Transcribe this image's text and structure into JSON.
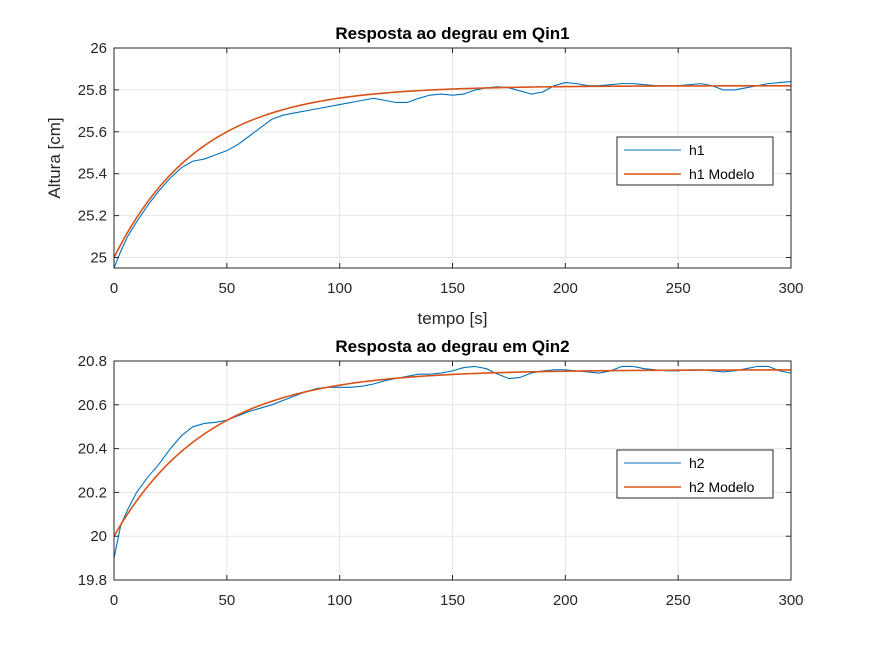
{
  "chart_data": [
    {
      "type": "line",
      "title": "Resposta ao degrau em Qin1",
      "xlabel": "tempo [s]",
      "ylabel": "Altura [cm]",
      "xlim": [
        0,
        300
      ],
      "ylim": [
        24.95,
        26
      ],
      "xticks": [
        "0",
        "50",
        "100",
        "150",
        "200",
        "250",
        "300"
      ],
      "yticks": [
        "25",
        "25.2",
        "25.4",
        "25.6",
        "25.8",
        "26"
      ],
      "grid": true,
      "legend_position": "right",
      "series": [
        {
          "name": "h1",
          "color": "#0072BD",
          "x": [
            0,
            3,
            6,
            10,
            15,
            20,
            25,
            30,
            35,
            40,
            45,
            50,
            55,
            60,
            65,
            70,
            75,
            80,
            90,
            100,
            110,
            115,
            120,
            125,
            130,
            135,
            140,
            145,
            150,
            155,
            160,
            165,
            170,
            175,
            180,
            185,
            190,
            195,
            200,
            205,
            210,
            215,
            220,
            225,
            230,
            235,
            240,
            245,
            250,
            255,
            260,
            265,
            270,
            275,
            280,
            285,
            290,
            295,
            300
          ],
          "y": [
            24.95,
            25.03,
            25.1,
            25.17,
            25.25,
            25.32,
            25.38,
            25.43,
            25.46,
            25.47,
            25.49,
            25.51,
            25.54,
            25.58,
            25.62,
            25.66,
            25.68,
            25.69,
            25.71,
            25.73,
            25.75,
            25.76,
            25.75,
            25.74,
            25.74,
            25.76,
            25.775,
            25.78,
            25.775,
            25.78,
            25.8,
            25.81,
            25.815,
            25.81,
            25.795,
            25.78,
            25.79,
            25.82,
            25.835,
            25.83,
            25.82,
            25.82,
            25.825,
            25.83,
            25.83,
            25.825,
            25.82,
            25.82,
            25.82,
            25.825,
            25.83,
            25.82,
            25.8,
            25.8,
            25.81,
            25.82,
            25.83,
            25.835,
            25.84
          ]
        },
        {
          "name": "h1 Modelo",
          "color": "#D95319",
          "model": {
            "initial": 25.0,
            "final": 25.82,
            "tau": 38,
            "step": 2
          }
        }
      ]
    },
    {
      "type": "line",
      "title": "Resposta ao degrau em Qin2",
      "xlabel": "",
      "ylabel": "",
      "xlim": [
        0,
        300
      ],
      "ylim": [
        19.8,
        20.8
      ],
      "xticks": [
        "0",
        "50",
        "100",
        "150",
        "200",
        "250",
        "300"
      ],
      "yticks": [
        "19.8",
        "20",
        "20.2",
        "20.4",
        "20.6",
        "20.8"
      ],
      "grid": true,
      "legend_position": "right",
      "series": [
        {
          "name": "h2",
          "color": "#0072BD",
          "x": [
            0,
            3,
            6,
            10,
            15,
            20,
            25,
            30,
            35,
            40,
            45,
            50,
            55,
            60,
            65,
            70,
            75,
            80,
            85,
            90,
            95,
            100,
            105,
            110,
            115,
            120,
            125,
            130,
            135,
            140,
            145,
            150,
            155,
            160,
            165,
            170,
            175,
            180,
            185,
            190,
            195,
            200,
            205,
            210,
            215,
            220,
            225,
            230,
            235,
            240,
            245,
            250,
            255,
            260,
            265,
            270,
            275,
            280,
            285,
            290,
            295,
            300
          ],
          "y": [
            19.9,
            20.05,
            20.12,
            20.2,
            20.27,
            20.33,
            20.4,
            20.46,
            20.5,
            20.515,
            20.52,
            20.53,
            20.55,
            20.57,
            20.585,
            20.6,
            20.62,
            20.64,
            20.66,
            20.675,
            20.68,
            20.68,
            20.68,
            20.685,
            20.695,
            20.71,
            20.72,
            20.73,
            20.74,
            20.74,
            20.745,
            20.755,
            20.77,
            20.775,
            20.765,
            20.74,
            20.72,
            20.725,
            20.745,
            20.755,
            20.76,
            20.76,
            20.755,
            20.75,
            20.745,
            20.755,
            20.775,
            20.775,
            20.765,
            20.76,
            20.755,
            20.755,
            20.76,
            20.76,
            20.755,
            20.75,
            20.755,
            20.765,
            20.775,
            20.775,
            20.755,
            20.745
          ]
        },
        {
          "name": "h2 Modelo",
          "color": "#D95319",
          "model": {
            "initial": 20.0,
            "final": 20.76,
            "tau": 42,
            "step": 2
          }
        }
      ]
    }
  ]
}
